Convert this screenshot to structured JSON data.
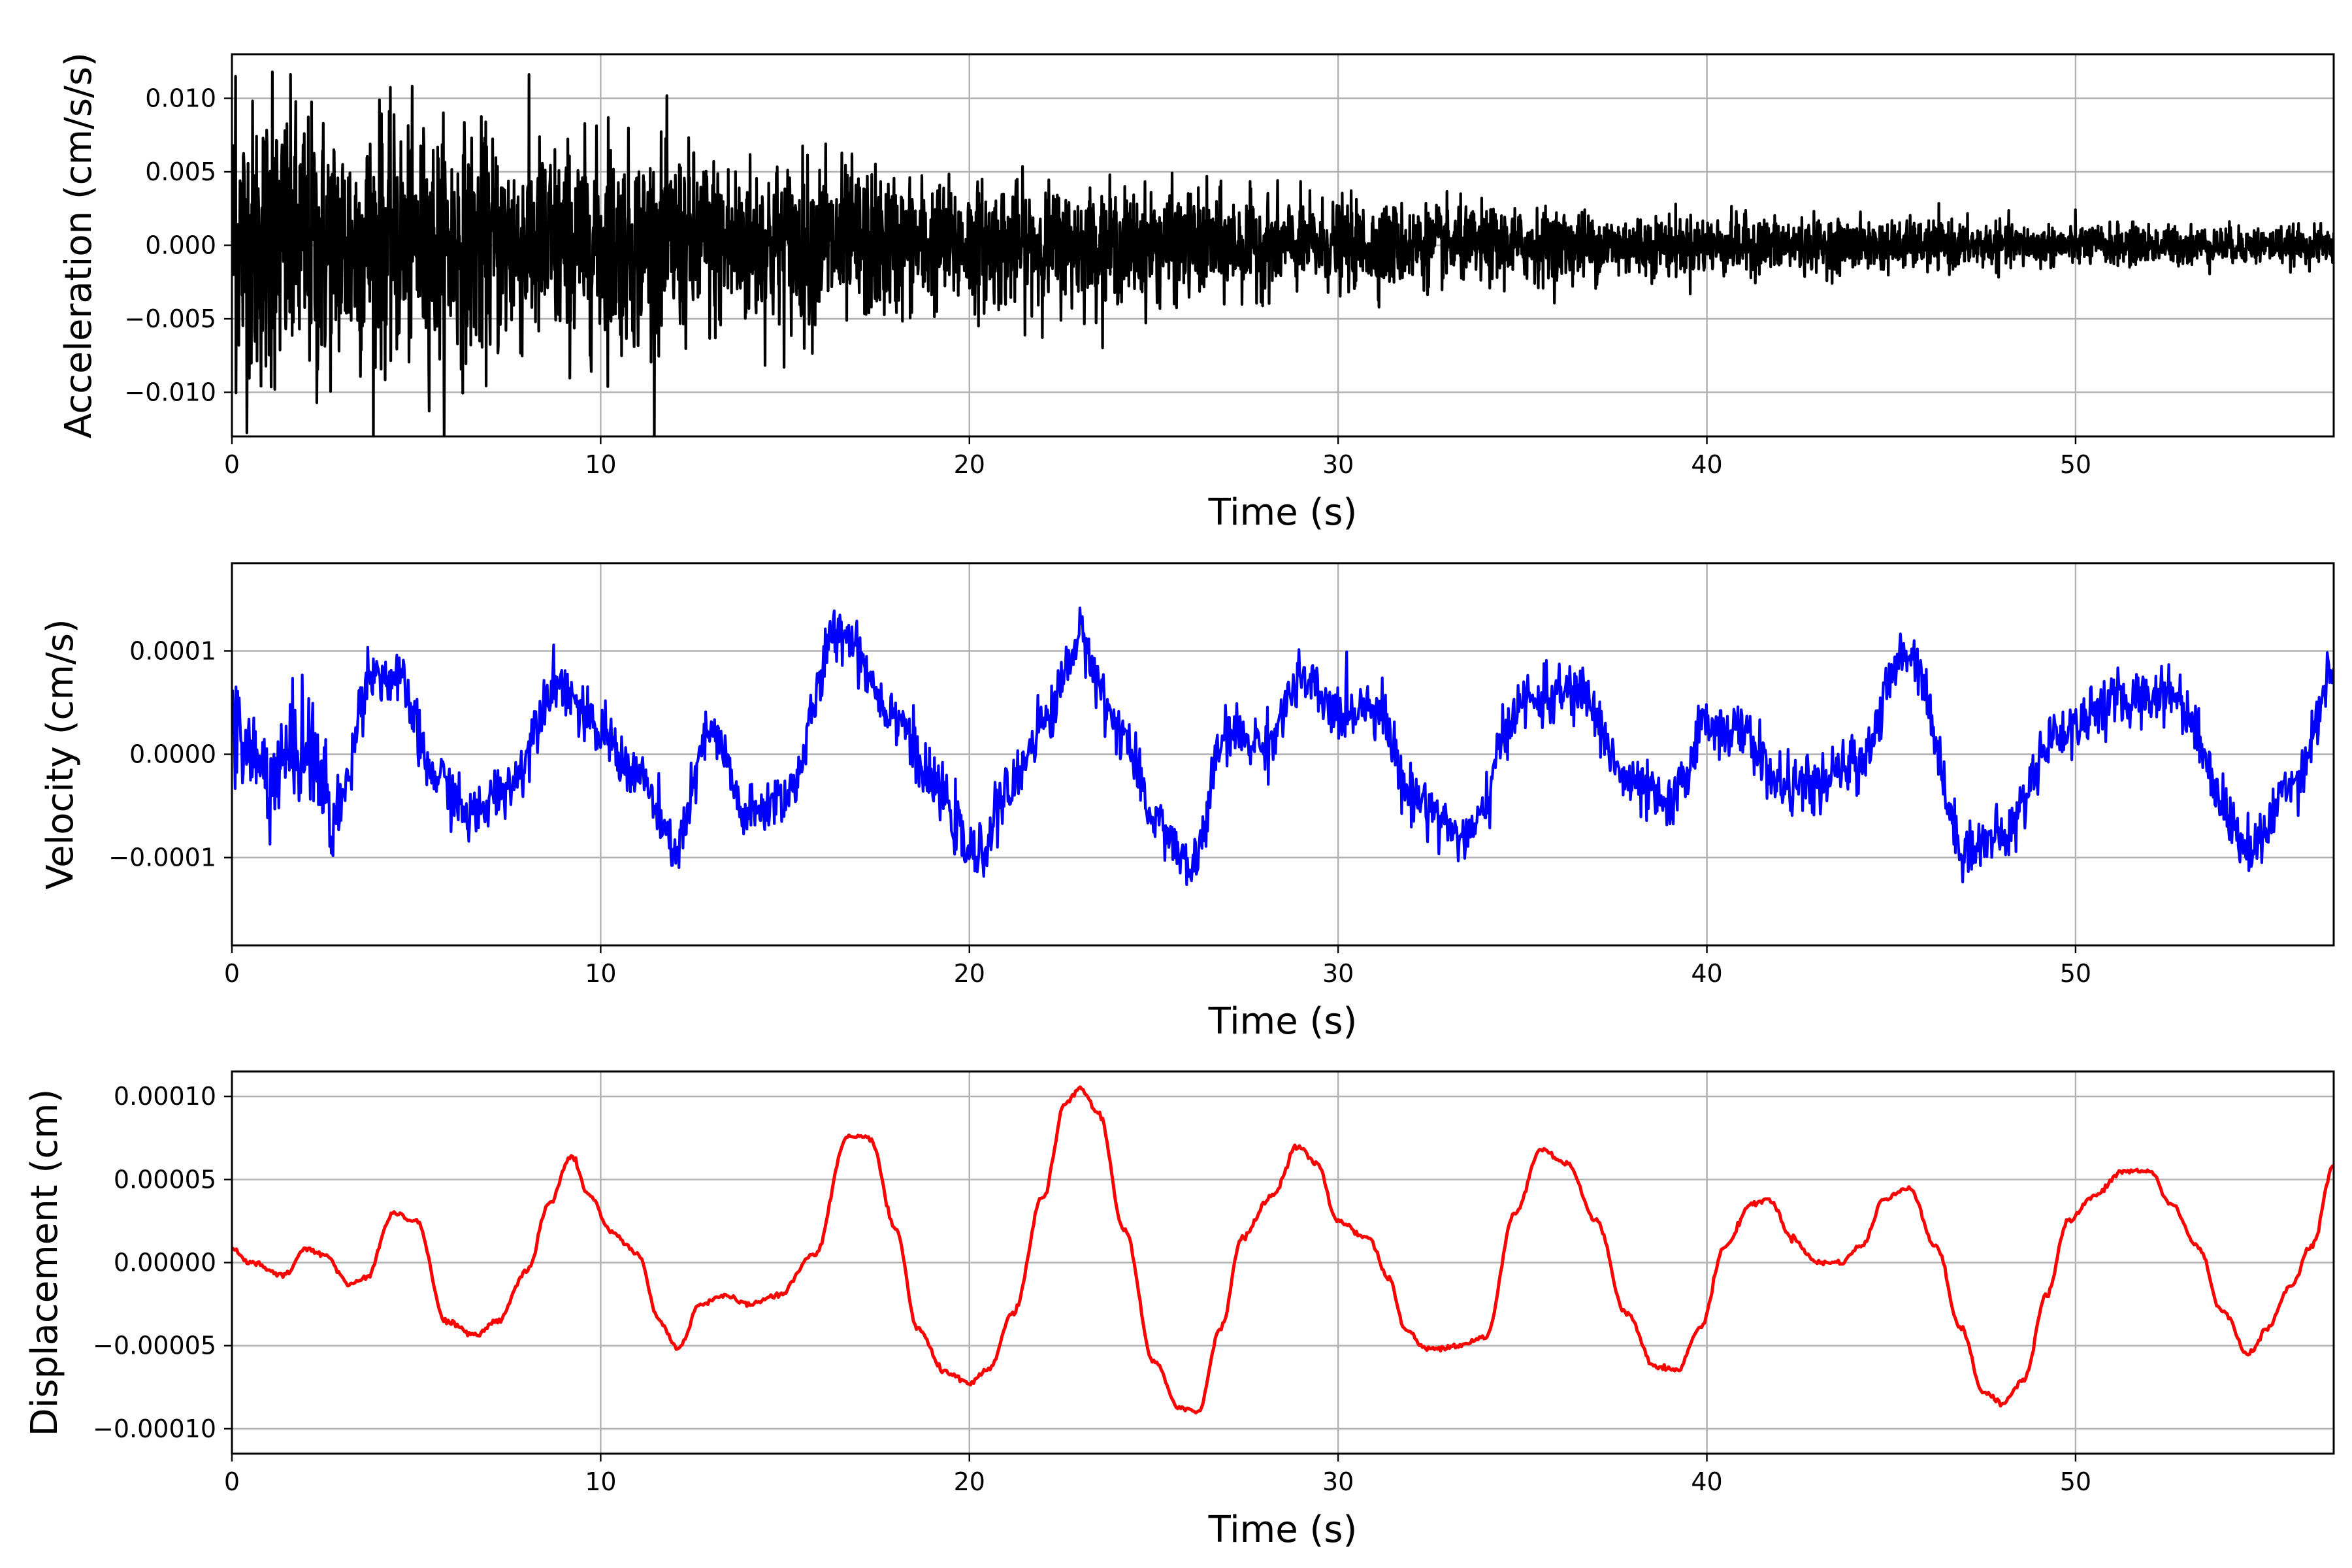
{
  "chart_data": [
    {
      "type": "line",
      "xlabel": "Time (s)",
      "ylabel": "Acceleration (cm/s/s)",
      "xlim": [
        0,
        57
      ],
      "ylim": [
        -0.013,
        0.013
      ],
      "xticks": [
        0,
        10,
        20,
        30,
        40,
        50
      ],
      "xtick_labels": [
        "0",
        "10",
        "20",
        "30",
        "40",
        "50"
      ],
      "yticks": [
        -0.01,
        -0.005,
        0.0,
        0.005,
        0.01
      ],
      "ytick_labels": [
        "−0.010",
        "−0.005",
        "0.000",
        "0.005",
        "0.010"
      ],
      "grid": true,
      "series": [
        {
          "color": "#000000",
          "signal": "random noise, amplitude decaying over time",
          "amplitude_envelope": [
            [
              0,
              0.0065
            ],
            [
              5,
              0.0052
            ],
            [
              10,
              0.0045
            ],
            [
              15,
              0.0038
            ],
            [
              20,
              0.0028
            ],
            [
              25,
              0.0024
            ],
            [
              30,
              0.0019
            ],
            [
              35,
              0.0016
            ],
            [
              40,
              0.0013
            ],
            [
              45,
              0.0011
            ],
            [
              50,
              0.0009
            ],
            [
              57,
              0.0008
            ]
          ],
          "peaks": [
            [
              0.1,
              0.0115
            ],
            [
              1.1,
              0.0118
            ],
            [
              2.3,
              -0.0107
            ],
            [
              4.0,
              0.0099
            ],
            [
              10.2,
              0.0087
            ],
            [
              16.1,
              0.0069
            ]
          ]
        }
      ]
    },
    {
      "type": "line",
      "xlabel": "Time (s)",
      "ylabel": "Velocity (cm/s)",
      "xlim": [
        0,
        57
      ],
      "ylim": [
        -0.000185,
        0.000185
      ],
      "xticks": [
        0,
        10,
        20,
        30,
        40,
        50
      ],
      "xtick_labels": [
        "0",
        "10",
        "20",
        "30",
        "40",
        "50"
      ],
      "yticks": [
        -0.0001,
        0.0,
        0.0001
      ],
      "ytick_labels": [
        "−0.0001",
        "0.0000",
        "0.0001"
      ],
      "grid": true,
      "series": [
        {
          "color": "#0000ff",
          "signal": "oscillating velocity with high-frequency noise",
          "x": [
            0,
            1,
            2,
            2.8,
            3.8,
            4.5,
            5.5,
            6.5,
            7.5,
            8.8,
            10,
            11,
            12,
            13,
            14,
            15,
            16.5,
            18,
            19,
            20.2,
            21,
            22,
            23,
            24,
            25,
            26,
            27,
            28,
            29,
            30,
            31,
            32,
            33.5,
            35,
            36.5,
            38,
            39,
            40,
            41,
            42,
            43,
            44,
            45.5,
            47,
            48,
            49.5,
            51,
            52.5,
            54.8,
            56,
            57
          ],
          "y": [
            2e-05,
            -2e-05,
            1e-05,
            -6e-05,
            8e-05,
            7e-05,
            -2e-05,
            -6e-05,
            -3e-05,
            7e-05,
            2e-05,
            -2e-05,
            -9e-05,
            2e-05,
            -6e-05,
            -4e-05,
            0.00012,
            4e-05,
            -3e-05,
            -0.0001,
            -4e-05,
            3e-05,
            0.00011,
            3e-05,
            -6e-05,
            -0.00011,
            2e-05,
            1e-05,
            7e-05,
            4e-05,
            5e-05,
            -4e-05,
            -8e-05,
            5e-05,
            6e-05,
            -3e-05,
            -5e-05,
            3e-05,
            2e-05,
            -3e-05,
            -3e-05,
            -1e-05,
            0.0001,
            -9e-05,
            -8e-05,
            2e-05,
            5e-05,
            6e-05,
            -9e-05,
            -2e-05,
            8e-05
          ]
        }
      ]
    },
    {
      "type": "line",
      "xlabel": "Time (s)",
      "ylabel": "Displacement (cm)",
      "xlim": [
        0,
        57
      ],
      "ylim": [
        -0.000115,
        0.000115
      ],
      "xticks": [
        0,
        10,
        20,
        30,
        40,
        50
      ],
      "xtick_labels": [
        "0",
        "10",
        "20",
        "30",
        "40",
        "50"
      ],
      "yticks": [
        -0.0001,
        -5e-05,
        0.0,
        5e-05,
        0.0001
      ],
      "ytick_labels": [
        "−0.00010",
        "−0.00005",
        "0.00000",
        "0.00005",
        "0.00010"
      ],
      "grid": true,
      "series": [
        {
          "color": "#ff0000",
          "x": [
            0,
            0.5,
            1.4,
            2.0,
            2.5,
            3.2,
            3.6,
            4.4,
            5.0,
            5.8,
            6.6,
            7.2,
            8.0,
            8.6,
            9.2,
            9.7,
            10.3,
            11.0,
            11.6,
            12.1,
            12.7,
            13.3,
            14.0,
            14.8,
            15.8,
            16.7,
            17.3,
            18.0,
            18.6,
            19.3,
            20.0,
            20.5,
            21.2,
            22.0,
            22.6,
            23.0,
            23.5,
            24.2,
            25.0,
            25.7,
            26.2,
            26.8,
            27.4,
            28.2,
            28.9,
            29.4,
            30.0,
            30.8,
            31.4,
            31.8,
            32.4,
            33.2,
            34.0,
            34.8,
            35.5,
            36.2,
            37.0,
            37.8,
            38.6,
            39.2,
            39.8,
            40.5,
            41.2,
            41.7,
            42.3,
            43.0,
            43.6,
            44.2,
            44.8,
            45.5,
            46.2,
            46.9,
            47.5,
            48.0,
            48.6,
            49.2,
            49.8,
            50.5,
            51.3,
            52.0,
            52.6,
            53.3,
            54.0,
            54.7,
            55.2,
            55.8,
            56.4,
            57.0
          ],
          "y": [
            8e-06,
            0.0,
            -8e-06,
            8e-06,
            5e-06,
            -1.3e-05,
            -1e-05,
            3e-05,
            2.5e-05,
            -3.5e-05,
            -4.4e-05,
            -3.5e-05,
            -5e-06,
            3.5e-05,
            6.4e-05,
            4e-05,
            1.8e-05,
            5e-06,
            -3.5e-05,
            -5.2e-05,
            -2.5e-05,
            -2e-05,
            -2.5e-05,
            -2e-05,
            5e-06,
            7.5e-05,
            7.5e-05,
            2e-05,
            -4e-05,
            -6.5e-05,
            -7.3e-05,
            -6.5e-05,
            -3e-05,
            4e-05,
            9.5e-05,
            0.000105,
            9e-05,
            2e-05,
            -6e-05,
            -8.7e-05,
            -9e-05,
            -4e-05,
            1.5e-05,
            4e-05,
            7e-05,
            6e-05,
            2.5e-05,
            1.5e-05,
            -1e-05,
            -4e-05,
            -5.2e-05,
            -5e-05,
            -4.5e-05,
            3e-05,
            6.8e-05,
            6e-05,
            2.5e-05,
            -3e-05,
            -6.2e-05,
            -6.5e-05,
            -4e-05,
            1e-05,
            3.5e-05,
            3.8e-05,
            1.5e-05,
            0.0,
            0.0,
            1e-05,
            3.8e-05,
            4.5e-05,
            1e-05,
            -4e-05,
            -7.8e-05,
            -8.5e-05,
            -7e-05,
            -2e-05,
            2.5e-05,
            4e-05,
            5.5e-05,
            5.5e-05,
            3.5e-05,
            1e-05,
            -3e-05,
            -5.5e-05,
            -4e-05,
            -1.5e-05,
            1e-05,
            5.8e-05
          ]
        }
      ]
    }
  ]
}
